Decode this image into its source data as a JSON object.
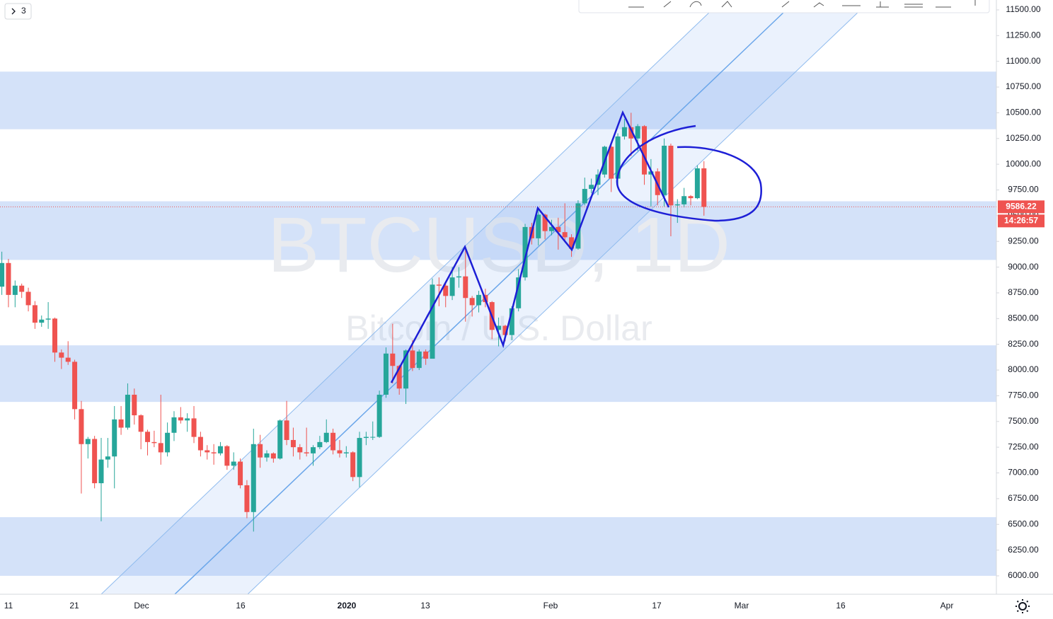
{
  "chart_data": {
    "type": "candlestick",
    "title": "BTCUSD, 1D",
    "subtitle": "Bitcoin / U.S. Dollar",
    "indicator_button": "3",
    "x_labels": [
      "11",
      "21",
      "Dec",
      "16",
      "2020",
      "13",
      "Feb",
      "17",
      "Mar",
      "16",
      "Apr"
    ],
    "open": [
      8810,
      9040,
      8730,
      8820,
      8760,
      8630,
      8460,
      8490,
      8500,
      8170,
      8120,
      8080,
      7620,
      7280,
      7330,
      6900,
      7130,
      7160,
      7520,
      7440,
      7760,
      7560,
      7400,
      7300,
      7290,
      7200,
      7390,
      7540,
      7510,
      7530,
      7350,
      7220,
      7200,
      7190,
      7260,
      7070,
      7110,
      6880,
      6620,
      7280,
      7150,
      7190,
      7140,
      7510,
      7320,
      7250,
      7200,
      7190,
      7250,
      7300,
      7390,
      7220,
      7190,
      7200,
      6960,
      7340,
      7350,
      7350,
      7760,
      8160,
      8040,
      7820,
      8190,
      8020,
      8180,
      8110,
      8830,
      8820,
      8720,
      8900,
      8910,
      8700,
      8630,
      8730,
      8660,
      8390,
      8430,
      8340,
      8600,
      8900,
      9390,
      9280,
      9510,
      9350,
      9390,
      9340,
      9290,
      9180,
      9620,
      9760,
      9800,
      9900,
      10170,
      9860,
      10270,
      10360,
      10250,
      10370,
      9900,
      9930,
      9700,
      10180,
      9600,
      9610,
      9690,
      9670,
      9960
    ],
    "high": [
      9150,
      9080,
      8870,
      8840,
      8800,
      8670,
      8530,
      8660,
      8510,
      8200,
      8280,
      8100,
      7700,
      7350,
      7360,
      7340,
      7340,
      7650,
      7650,
      7870,
      7820,
      7570,
      7420,
      7410,
      7760,
      7490,
      7600,
      7640,
      7580,
      7650,
      7400,
      7270,
      7280,
      7300,
      7270,
      7200,
      7140,
      6930,
      7430,
      7370,
      7220,
      7200,
      7520,
      7700,
      7440,
      7280,
      7440,
      7270,
      7360,
      7520,
      7430,
      7320,
      7260,
      7210,
      7400,
      7400,
      7500,
      7800,
      8220,
      8450,
      8050,
      8200,
      8290,
      8200,
      8200,
      8890,
      8900,
      8840,
      9000,
      9000,
      9180,
      8720,
      8770,
      8790,
      8670,
      8510,
      8440,
      8620,
      8980,
      9420,
      9430,
      9560,
      9520,
      9460,
      9480,
      9620,
      9320,
      9650,
      9870,
      9860,
      9950,
      10180,
      10190,
      10300,
      10440,
      10500,
      10390,
      10380,
      10050,
      9960,
      10250,
      10200,
      9660,
      9770,
      9700,
      9990,
      10030
    ],
    "low": [
      8730,
      8610,
      8610,
      8700,
      8570,
      8400,
      8420,
      8400,
      8080,
      8010,
      8050,
      7520,
      6800,
      7140,
      6850,
      6530,
      7050,
      6850,
      7370,
      7420,
      7470,
      7230,
      7170,
      7250,
      7080,
      7160,
      7310,
      7480,
      7400,
      7290,
      7160,
      7130,
      7080,
      7170,
      7030,
      7030,
      6850,
      6560,
      6430,
      7050,
      7110,
      7100,
      7130,
      7270,
      7160,
      7130,
      7160,
      7070,
      7230,
      7290,
      7180,
      7150,
      7150,
      6920,
      6860,
      7270,
      7320,
      7340,
      7730,
      7870,
      7760,
      7670,
      7990,
      8000,
      8050,
      8110,
      8620,
      8610,
      8680,
      8800,
      8470,
      8520,
      8560,
      8610,
      8300,
      8230,
      8280,
      8290,
      8570,
      8870,
      9220,
      9210,
      9270,
      9310,
      9170,
      9240,
      9100,
      9170,
      9600,
      9720,
      9700,
      9870,
      9730,
      9800,
      10240,
      10080,
      10130,
      9800,
      9590,
      9600,
      9590,
      9300,
      9430,
      9580,
      9600,
      9660,
      9500
    ],
    "close": [
      9040,
      8730,
      8820,
      8760,
      8630,
      8460,
      8490,
      8500,
      8170,
      8120,
      8080,
      7620,
      7280,
      7330,
      6900,
      7130,
      7160,
      7520,
      7440,
      7760,
      7560,
      7400,
      7300,
      7290,
      7200,
      7390,
      7540,
      7510,
      7530,
      7350,
      7220,
      7200,
      7190,
      7260,
      7070,
      7110,
      6880,
      6620,
      7280,
      7150,
      7190,
      7140,
      7510,
      7320,
      7250,
      7200,
      7190,
      7250,
      7300,
      7390,
      7220,
      7190,
      7200,
      6960,
      7340,
      7350,
      7350,
      7760,
      8160,
      8040,
      7820,
      8190,
      8020,
      8180,
      8110,
      8830,
      8820,
      8720,
      8900,
      8910,
      8700,
      8630,
      8730,
      8660,
      8390,
      8430,
      8340,
      8600,
      8900,
      9390,
      9280,
      9510,
      9350,
      9390,
      9340,
      9290,
      9180,
      9620,
      9760,
      9800,
      9900,
      10170,
      9860,
      10270,
      10360,
      10250,
      10370,
      9900,
      9930,
      9700,
      10180,
      9600,
      9610,
      9690,
      9670,
      9960,
      9586.22
    ],
    "up_color": "#26a69a",
    "down_color": "#ef5350",
    "zones": [
      [
        10340,
        10900
      ],
      [
        9070,
        9640
      ],
      [
        7690,
        8240
      ],
      [
        6000,
        6570
      ]
    ],
    "zone_color": "#c5d8f7",
    "last_price": 9586.22,
    "countdown": "14:26:57",
    "ylim": [
      5821,
      11596
    ],
    "yticks": [
      {
        "value": 6000,
        "label": "6000.00"
      },
      {
        "value": 6250,
        "label": "6250.00"
      },
      {
        "value": 6500,
        "label": "6500.00"
      },
      {
        "value": 6750,
        "label": "6750.00"
      },
      {
        "value": 7000,
        "label": "7000.00"
      },
      {
        "value": 7250,
        "label": "7250.00"
      },
      {
        "value": 7500,
        "label": "7500.00"
      },
      {
        "value": 7750,
        "label": "7750.00"
      },
      {
        "value": 8000,
        "label": "8000.00"
      },
      {
        "value": 8250,
        "label": "8250.00"
      },
      {
        "value": 8500,
        "label": "8500.00"
      },
      {
        "value": 8750,
        "label": "8750.00"
      },
      {
        "value": 9000,
        "label": "9000.00"
      },
      {
        "value": 9250,
        "label": "9250.00"
      },
      {
        "value": 9500,
        "label": "9500.00"
      },
      {
        "value": 9750,
        "label": "9750.00"
      },
      {
        "value": 10000,
        "label": "10000.00"
      },
      {
        "value": 10250,
        "label": "10250.00"
      },
      {
        "value": 10500,
        "label": "10500.00"
      },
      {
        "value": 10750,
        "label": "10750.00"
      },
      {
        "value": 11000,
        "label": "11000.00"
      },
      {
        "value": 11250,
        "label": "11250.00"
      },
      {
        "value": 11500,
        "label": "11500.00"
      }
    ]
  }
}
